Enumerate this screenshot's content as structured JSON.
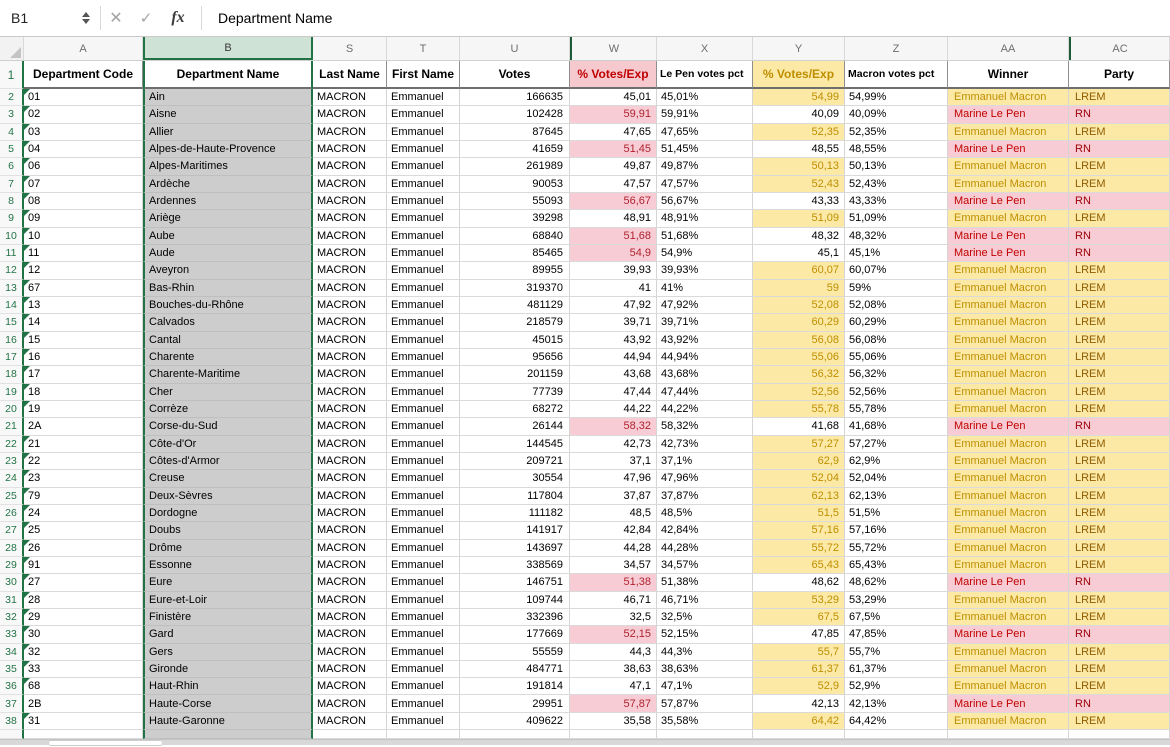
{
  "formula_bar": {
    "cell_ref": "B1",
    "value": "Department Name",
    "fx_label": "fx",
    "cancel_icon": "✕",
    "confirm_icon": "✓"
  },
  "columns": {
    "row_header_width": 24,
    "letters": [
      "A",
      "B",
      "S",
      "T",
      "U",
      "W",
      "X",
      "Y",
      "Z",
      "AA",
      "AC"
    ],
    "widths": [
      119,
      170,
      74,
      73,
      110,
      87,
      96,
      92,
      103,
      121,
      101
    ],
    "selected_letter": "B",
    "hidden_separators_before": [
      "W",
      "AC"
    ]
  },
  "header_row": {
    "a": "Department Code",
    "b": "Department Name",
    "s": "Last Name",
    "t": "First Name",
    "u": "Votes",
    "w": "% Votes/Exp",
    "x": "Le Pen votes pct",
    "y": "% Votes/Exp",
    "z": "Macron votes pct",
    "aa": "Winner",
    "ac": "Party"
  },
  "candidate": {
    "last_name": "MACRON",
    "first_name": "Emmanuel"
  },
  "colors": {
    "selection_green": "#217346",
    "selected_col_header_bg": "#cfe2d6",
    "selected_col_fill": "#cdcdcd",
    "bad_bg": "#f8ccd4",
    "bad_text": "#9c0006",
    "bad_header_text": "#c00000",
    "neutral_bg": "#fce9a6",
    "neutral_text": "#bf8f00",
    "party_lrem_text": "#8e5c00"
  },
  "rows": [
    {
      "n": 2,
      "code": "01",
      "tri": true,
      "name": "Ain",
      "votes": "166635",
      "lp": "45,01",
      "lpp": "45,01%",
      "mac": "54,99",
      "macp": "54,99%",
      "winner": "Emmanuel Macron",
      "party": "LREM"
    },
    {
      "n": 3,
      "code": "02",
      "tri": true,
      "name": "Aisne",
      "votes": "102428",
      "lp": "59,91",
      "lpp": "59,91%",
      "mac": "40,09",
      "macp": "40,09%",
      "winner": "Marine Le Pen",
      "party": "RN"
    },
    {
      "n": 4,
      "code": "03",
      "tri": true,
      "name": "Allier",
      "votes": "87645",
      "lp": "47,65",
      "lpp": "47,65%",
      "mac": "52,35",
      "macp": "52,35%",
      "winner": "Emmanuel Macron",
      "party": "LREM"
    },
    {
      "n": 5,
      "code": "04",
      "tri": true,
      "name": "Alpes-de-Haute-Provence",
      "votes": "41659",
      "lp": "51,45",
      "lpp": "51,45%",
      "mac": "48,55",
      "macp": "48,55%",
      "winner": "Marine Le Pen",
      "party": "RN"
    },
    {
      "n": 6,
      "code": "06",
      "tri": true,
      "name": "Alpes-Maritimes",
      "votes": "261989",
      "lp": "49,87",
      "lpp": "49,87%",
      "mac": "50,13",
      "macp": "50,13%",
      "winner": "Emmanuel Macron",
      "party": "LREM"
    },
    {
      "n": 7,
      "code": "07",
      "tri": true,
      "name": "Ardèche",
      "votes": "90053",
      "lp": "47,57",
      "lpp": "47,57%",
      "mac": "52,43",
      "macp": "52,43%",
      "winner": "Emmanuel Macron",
      "party": "LREM"
    },
    {
      "n": 8,
      "code": "08",
      "tri": true,
      "name": "Ardennes",
      "votes": "55093",
      "lp": "56,67",
      "lpp": "56,67%",
      "mac": "43,33",
      "macp": "43,33%",
      "winner": "Marine Le Pen",
      "party": "RN"
    },
    {
      "n": 9,
      "code": "09",
      "tri": true,
      "name": "Ariège",
      "votes": "39298",
      "lp": "48,91",
      "lpp": "48,91%",
      "mac": "51,09",
      "macp": "51,09%",
      "winner": "Emmanuel Macron",
      "party": "LREM"
    },
    {
      "n": 10,
      "code": "10",
      "tri": true,
      "name": "Aube",
      "votes": "68840",
      "lp": "51,68",
      "lpp": "51,68%",
      "mac": "48,32",
      "macp": "48,32%",
      "winner": "Marine Le Pen",
      "party": "RN"
    },
    {
      "n": 11,
      "code": "11",
      "tri": true,
      "name": "Aude",
      "votes": "85465",
      "lp": "54,9",
      "lpp": "54,9%",
      "mac": "45,1",
      "macp": "45,1%",
      "winner": "Marine Le Pen",
      "party": "RN"
    },
    {
      "n": 12,
      "code": "12",
      "tri": true,
      "name": "Aveyron",
      "votes": "89955",
      "lp": "39,93",
      "lpp": "39,93%",
      "mac": "60,07",
      "macp": "60,07%",
      "winner": "Emmanuel Macron",
      "party": "LREM"
    },
    {
      "n": 13,
      "code": "67",
      "tri": true,
      "name": "Bas-Rhin",
      "votes": "319370",
      "lp": "41",
      "lpp": "41%",
      "mac": "59",
      "macp": "59%",
      "winner": "Emmanuel Macron",
      "party": "LREM"
    },
    {
      "n": 14,
      "code": "13",
      "tri": true,
      "name": "Bouches-du-Rhône",
      "votes": "481129",
      "lp": "47,92",
      "lpp": "47,92%",
      "mac": "52,08",
      "macp": "52,08%",
      "winner": "Emmanuel Macron",
      "party": "LREM"
    },
    {
      "n": 15,
      "code": "14",
      "tri": true,
      "name": "Calvados",
      "votes": "218579",
      "lp": "39,71",
      "lpp": "39,71%",
      "mac": "60,29",
      "macp": "60,29%",
      "winner": "Emmanuel Macron",
      "party": "LREM"
    },
    {
      "n": 16,
      "code": "15",
      "tri": true,
      "name": "Cantal",
      "votes": "45015",
      "lp": "43,92",
      "lpp": "43,92%",
      "mac": "56,08",
      "macp": "56,08%",
      "winner": "Emmanuel Macron",
      "party": "LREM"
    },
    {
      "n": 17,
      "code": "16",
      "tri": true,
      "name": "Charente",
      "votes": "95656",
      "lp": "44,94",
      "lpp": "44,94%",
      "mac": "55,06",
      "macp": "55,06%",
      "winner": "Emmanuel Macron",
      "party": "LREM"
    },
    {
      "n": 18,
      "code": "17",
      "tri": true,
      "name": "Charente-Maritime",
      "votes": "201159",
      "lp": "43,68",
      "lpp": "43,68%",
      "mac": "56,32",
      "macp": "56,32%",
      "winner": "Emmanuel Macron",
      "party": "LREM"
    },
    {
      "n": 19,
      "code": "18",
      "tri": true,
      "name": "Cher",
      "votes": "77739",
      "lp": "47,44",
      "lpp": "47,44%",
      "mac": "52,56",
      "macp": "52,56%",
      "winner": "Emmanuel Macron",
      "party": "LREM"
    },
    {
      "n": 20,
      "code": "19",
      "tri": true,
      "name": "Corrèze",
      "votes": "68272",
      "lp": "44,22",
      "lpp": "44,22%",
      "mac": "55,78",
      "macp": "55,78%",
      "winner": "Emmanuel Macron",
      "party": "LREM"
    },
    {
      "n": 21,
      "code": "2A",
      "tri": false,
      "name": "Corse-du-Sud",
      "votes": "26144",
      "lp": "58,32",
      "lpp": "58,32%",
      "mac": "41,68",
      "macp": "41,68%",
      "winner": "Marine Le Pen",
      "party": "RN"
    },
    {
      "n": 22,
      "code": "21",
      "tri": true,
      "name": "Côte-d'Or",
      "votes": "144545",
      "lp": "42,73",
      "lpp": "42,73%",
      "mac": "57,27",
      "macp": "57,27%",
      "winner": "Emmanuel Macron",
      "party": "LREM"
    },
    {
      "n": 23,
      "code": "22",
      "tri": true,
      "name": "Côtes-d'Armor",
      "votes": "209721",
      "lp": "37,1",
      "lpp": "37,1%",
      "mac": "62,9",
      "macp": "62,9%",
      "winner": "Emmanuel Macron",
      "party": "LREM"
    },
    {
      "n": 24,
      "code": "23",
      "tri": true,
      "name": "Creuse",
      "votes": "30554",
      "lp": "47,96",
      "lpp": "47,96%",
      "mac": "52,04",
      "macp": "52,04%",
      "winner": "Emmanuel Macron",
      "party": "LREM"
    },
    {
      "n": 25,
      "code": "79",
      "tri": true,
      "name": "Deux-Sèvres",
      "votes": "117804",
      "lp": "37,87",
      "lpp": "37,87%",
      "mac": "62,13",
      "macp": "62,13%",
      "winner": "Emmanuel Macron",
      "party": "LREM"
    },
    {
      "n": 26,
      "code": "24",
      "tri": true,
      "name": "Dordogne",
      "votes": "111182",
      "lp": "48,5",
      "lpp": "48,5%",
      "mac": "51,5",
      "macp": "51,5%",
      "winner": "Emmanuel Macron",
      "party": "LREM"
    },
    {
      "n": 27,
      "code": "25",
      "tri": true,
      "name": "Doubs",
      "votes": "141917",
      "lp": "42,84",
      "lpp": "42,84%",
      "mac": "57,16",
      "macp": "57,16%",
      "winner": "Emmanuel Macron",
      "party": "LREM"
    },
    {
      "n": 28,
      "code": "26",
      "tri": true,
      "name": "Drôme",
      "votes": "143697",
      "lp": "44,28",
      "lpp": "44,28%",
      "mac": "55,72",
      "macp": "55,72%",
      "winner": "Emmanuel Macron",
      "party": "LREM"
    },
    {
      "n": 29,
      "code": "91",
      "tri": true,
      "name": "Essonne",
      "votes": "338569",
      "lp": "34,57",
      "lpp": "34,57%",
      "mac": "65,43",
      "macp": "65,43%",
      "winner": "Emmanuel Macron",
      "party": "LREM"
    },
    {
      "n": 30,
      "code": "27",
      "tri": true,
      "name": "Eure",
      "votes": "146751",
      "lp": "51,38",
      "lpp": "51,38%",
      "mac": "48,62",
      "macp": "48,62%",
      "winner": "Marine Le Pen",
      "party": "RN"
    },
    {
      "n": 31,
      "code": "28",
      "tri": true,
      "name": "Eure-et-Loir",
      "votes": "109744",
      "lp": "46,71",
      "lpp": "46,71%",
      "mac": "53,29",
      "macp": "53,29%",
      "winner": "Emmanuel Macron",
      "party": "LREM"
    },
    {
      "n": 32,
      "code": "29",
      "tri": true,
      "name": "Finistère",
      "votes": "332396",
      "lp": "32,5",
      "lpp": "32,5%",
      "mac": "67,5",
      "macp": "67,5%",
      "winner": "Emmanuel Macron",
      "party": "LREM"
    },
    {
      "n": 33,
      "code": "30",
      "tri": true,
      "name": "Gard",
      "votes": "177669",
      "lp": "52,15",
      "lpp": "52,15%",
      "mac": "47,85",
      "macp": "47,85%",
      "winner": "Marine Le Pen",
      "party": "RN"
    },
    {
      "n": 34,
      "code": "32",
      "tri": true,
      "name": "Gers",
      "votes": "55559",
      "lp": "44,3",
      "lpp": "44,3%",
      "mac": "55,7",
      "macp": "55,7%",
      "winner": "Emmanuel Macron",
      "party": "LREM"
    },
    {
      "n": 35,
      "code": "33",
      "tri": true,
      "name": "Gironde",
      "votes": "484771",
      "lp": "38,63",
      "lpp": "38,63%",
      "mac": "61,37",
      "macp": "61,37%",
      "winner": "Emmanuel Macron",
      "party": "LREM"
    },
    {
      "n": 36,
      "code": "68",
      "tri": true,
      "name": "Haut-Rhin",
      "votes": "191814",
      "lp": "47,1",
      "lpp": "47,1%",
      "mac": "52,9",
      "macp": "52,9%",
      "winner": "Emmanuel Macron",
      "party": "LREM"
    },
    {
      "n": 37,
      "code": "2B",
      "tri": false,
      "name": "Haute-Corse",
      "votes": "29951",
      "lp": "57,87",
      "lpp": "57,87%",
      "mac": "42,13",
      "macp": "42,13%",
      "winner": "Marine Le Pen",
      "party": "RN"
    },
    {
      "n": 38,
      "code": "31",
      "tri": true,
      "name": "Haute-Garonne",
      "votes": "409622",
      "lp": "35,58",
      "lpp": "35,58%",
      "mac": "64,42",
      "macp": "64,42%",
      "winner": "Emmanuel Macron",
      "party": "LREM"
    }
  ]
}
